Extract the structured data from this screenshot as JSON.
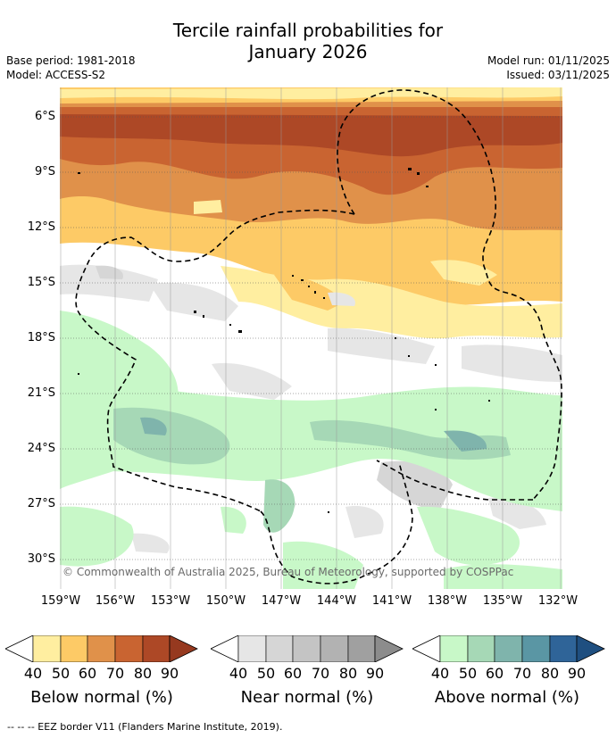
{
  "title_line1": "Tercile rainfall probabilities for",
  "title_line2": "January 2026",
  "base_period": "Base period: 1981-2018",
  "model": "Model: ACCESS-S2",
  "model_run": "Model run: 01/11/2025",
  "issued": "Issued: 03/11/2025",
  "copyright": "© Commonwealth of Australia 2025, Bureau of Meteorology, supported by COSPPac",
  "lat_labels": [
    "6°S",
    "9°S",
    "12°S",
    "15°S",
    "18°S",
    "21°S",
    "24°S",
    "27°S",
    "30°S"
  ],
  "lon_labels": [
    "159°W",
    "156°W",
    "153°W",
    "150°W",
    "147°W",
    "144°W",
    "141°W",
    "138°W",
    "135°W",
    "132°W"
  ],
  "colorbars": [
    {
      "name": "below",
      "title": "Below normal (%)",
      "ticks": [
        "40",
        "50",
        "60",
        "70",
        "80",
        "90"
      ],
      "colors": [
        "#ffeea0",
        "#fdca66",
        "#e0914a",
        "#c96431",
        "#ad4826",
        "#96391f"
      ]
    },
    {
      "name": "near",
      "title": "Near normal (%)",
      "ticks": [
        "40",
        "50",
        "60",
        "70",
        "80",
        "90"
      ],
      "colors": [
        "#e6e6e6",
        "#d6d6d6",
        "#c4c4c4",
        "#b2b2b2",
        "#a0a0a0",
        "#8c8c8c"
      ]
    },
    {
      "name": "above",
      "title": "Above normal (%)",
      "ticks": [
        "40",
        "50",
        "60",
        "70",
        "80",
        "90"
      ],
      "colors": [
        "#c8f8c8",
        "#a6d8b6",
        "#7fb4ac",
        "#5a96a4",
        "#2f6498",
        "#1f4f80"
      ]
    }
  ],
  "footnote": "--  --  -- EEZ border V11 (Flanders Marine Institute, 2019)."
}
